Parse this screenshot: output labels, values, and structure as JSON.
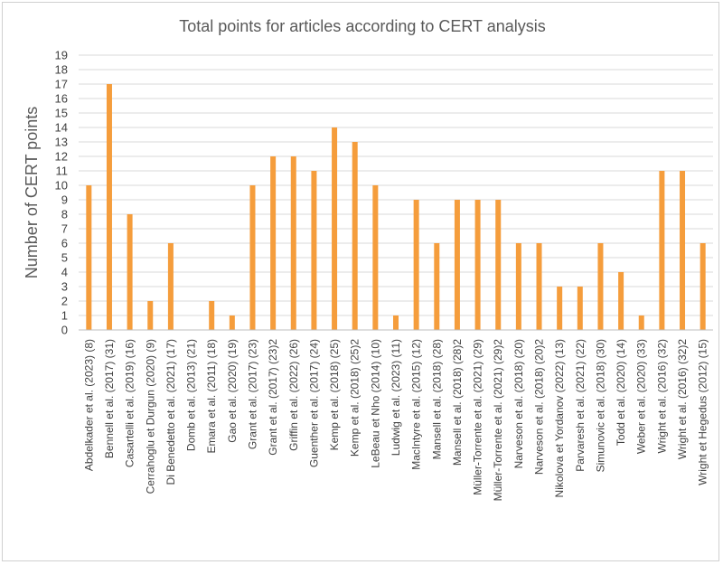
{
  "chart_data": {
    "type": "bar",
    "title": "Total points for articles according to CERT analysis",
    "xlabel": "",
    "ylabel": "Number of CERT points",
    "ylim": [
      0,
      19
    ],
    "yticks": [
      0,
      1,
      2,
      3,
      4,
      5,
      6,
      7,
      8,
      9,
      10,
      11,
      12,
      13,
      14,
      15,
      16,
      17,
      18,
      19
    ],
    "grid": false,
    "legend": "none",
    "bar_color": "#F59D3C",
    "categories": [
      "Abdelkader et al. (2023) (8)",
      "Bennell et al. (2017) (31)",
      "Casartelli et al. (2019) (16)",
      "Cerrahoglu et Durgun (2020) (9)",
      "Di Benedetto et al. (2021) (17)",
      "Domb et al. (2013) (21)",
      "Emara et al. (2011) (18)",
      "Gao et al. (2020) (19)",
      "Grant et al. (2017) (23)",
      "Grant et al. (2017) (23)2",
      "Griffin et al. (2022) (26)",
      "Guenther et al. (2017) (24)",
      "Kemp et al. (2018) (25)",
      "Kemp et al. (2018) (25)2",
      "LeBeau et Nho (2014) (10)",
      "Ludwig et al. (2023) (11)",
      "MacIntyre et al. (2015) (12)",
      "Mansell et al. (2018) (28)",
      "Mansell et al. (2018) (28)2",
      "Müller-Torrente et al. (2021) (29)",
      "Müller-Torrente et al. (2021) (29)2",
      "Narveson et al. (2018) (20)",
      "Narveson et al. (2018) (20)2",
      "Nikolova et Yordanov (2022) (13)",
      "Parvaresh et al. (2021) (22)",
      "Simunovic et al. (2018) (30)",
      "Todd et al. (2020) (14)",
      "Weber et al. (2020) (33)",
      "Wright et al. (2016) (32)",
      "Wright et al. (2016) (32)2",
      "Wright et Hegedus (2012) (15)"
    ],
    "values": [
      10,
      17,
      8,
      2,
      6,
      0,
      2,
      1,
      10,
      12,
      12,
      11,
      14,
      13,
      10,
      1,
      9,
      6,
      9,
      9,
      9,
      6,
      6,
      3,
      3,
      6,
      4,
      1,
      11,
      11,
      6
    ]
  }
}
